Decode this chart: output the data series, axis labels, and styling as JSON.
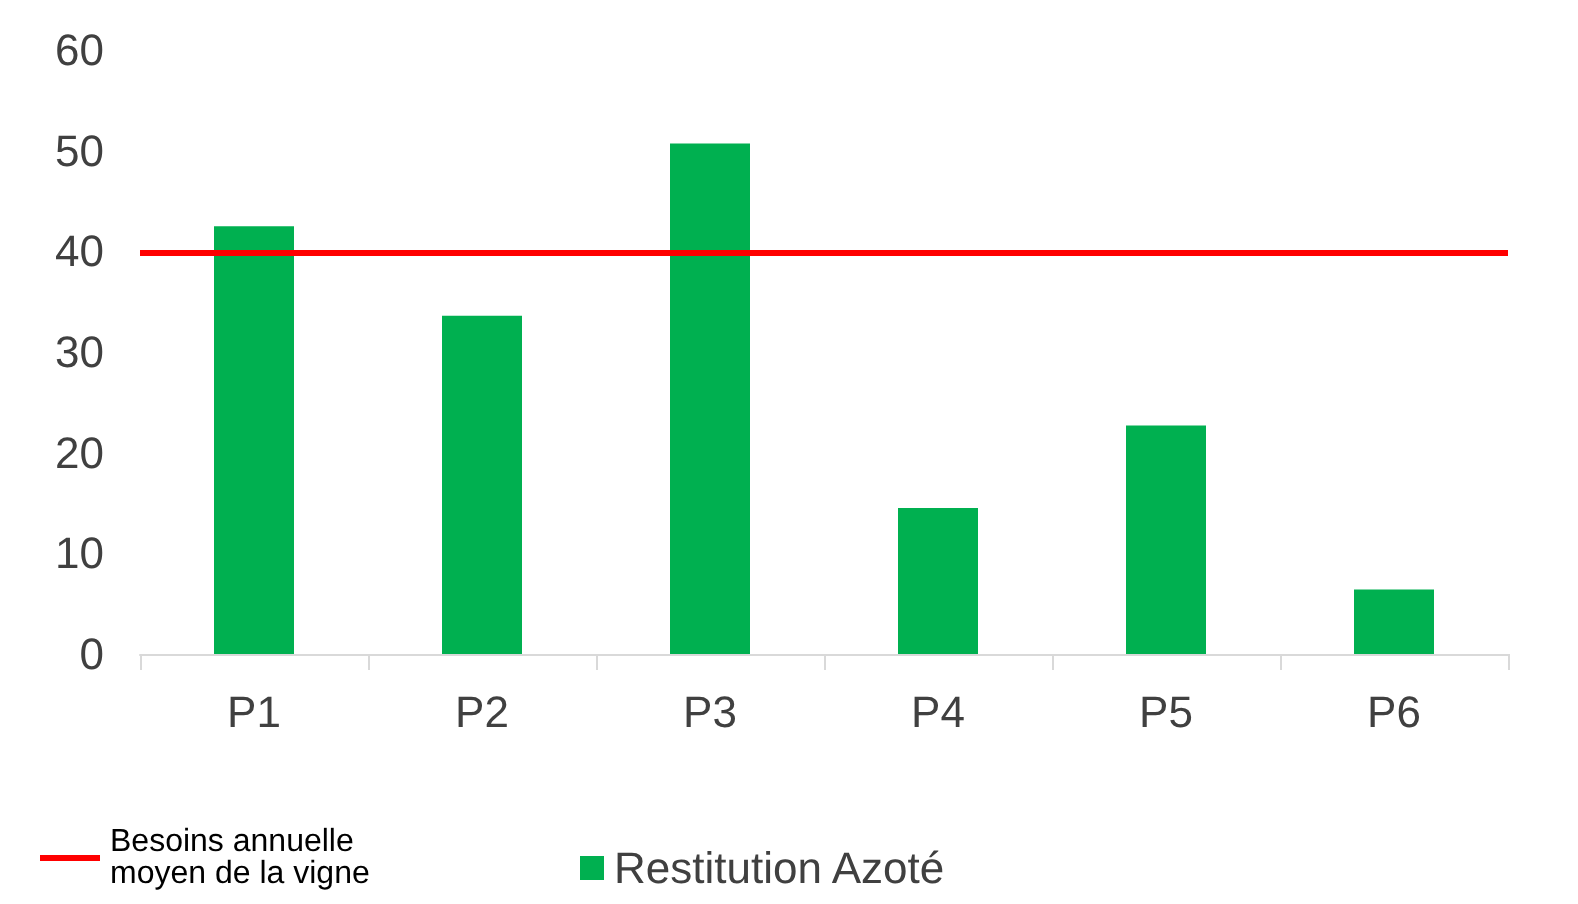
{
  "chart_data": {
    "type": "bar",
    "categories": [
      "P1",
      "P2",
      "P3",
      "P4",
      "P5",
      "P6"
    ],
    "series": [
      {
        "name": "Restitution Azoté",
        "color": "#00b050",
        "values": [
          42.5,
          33.6,
          50.7,
          14.5,
          22.7,
          6.4
        ]
      }
    ],
    "ylim": [
      0,
      60
    ],
    "yticks": [
      0,
      10,
      20,
      30,
      40,
      50,
      60
    ],
    "grid": false,
    "legend": "bottom",
    "ref_lines": [
      {
        "axis": "y",
        "value": 39.8,
        "label": "Besoins annuelle moyen de la vigne",
        "color": "#ff0000",
        "line_style": "solid"
      }
    ]
  }
}
